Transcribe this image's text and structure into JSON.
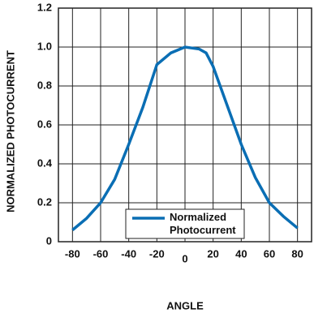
{
  "chart_data": {
    "type": "line",
    "x_label": "ANGLE",
    "y_label": "NORMALIZED PHOTOCURRENT",
    "x": [
      -80,
      -70,
      -60,
      -50,
      -40,
      -30,
      -20,
      -10,
      0,
      10,
      15,
      20,
      30,
      40,
      50,
      60,
      70,
      80
    ],
    "series": [
      {
        "name": "Normalized Photocurrent",
        "color": "#0a6eb4",
        "values": [
          0.06,
          0.12,
          0.2,
          0.32,
          0.5,
          0.69,
          0.91,
          0.97,
          1.0,
          0.99,
          0.97,
          0.9,
          0.7,
          0.5,
          0.33,
          0.2,
          0.13,
          0.07
        ]
      }
    ],
    "xlim": [
      -90,
      90
    ],
    "xticks": [
      -80,
      -60,
      -40,
      -20,
      0,
      20,
      40,
      60,
      80
    ],
    "ylim": [
      0,
      1.2
    ],
    "yticks": [
      0,
      0.2,
      0.4,
      0.6,
      0.8,
      {
        "value": 1,
        "label": "1.0"
      },
      1.2
    ],
    "grid": true,
    "legend": "bottom"
  }
}
